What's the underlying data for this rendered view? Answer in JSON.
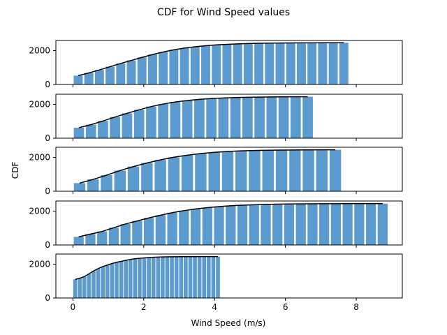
{
  "figure": {
    "title": "CDF for Wind Speed values",
    "xlabel": "Wind Speed (m/s)",
    "ylabel": "CDF"
  },
  "colors": {
    "bar": "#5b9bcf",
    "line": "#000000"
  },
  "chart_data": {
    "type": "bar",
    "shared_x": true,
    "xlim": [
      -0.48,
      9.3
    ],
    "xticks": [
      0,
      2,
      4,
      6,
      8
    ],
    "ylim": [
      0,
      2600
    ],
    "yticks": [
      0,
      2000
    ],
    "grid": false,
    "panels": [
      {
        "bin_width": 0.3,
        "x": [
          0.15,
          0.45,
          0.75,
          1.05,
          1.35,
          1.65,
          1.95,
          2.25,
          2.55,
          2.85,
          3.15,
          3.45,
          3.75,
          4.05,
          4.35,
          4.65,
          4.95,
          5.25,
          5.55,
          5.85,
          6.15,
          6.45,
          6.75,
          7.05,
          7.35,
          7.65
        ],
        "values": [
          520,
          680,
          860,
          1050,
          1240,
          1420,
          1600,
          1770,
          1920,
          2050,
          2150,
          2230,
          2290,
          2340,
          2375,
          2400,
          2420,
          2435,
          2445,
          2452,
          2457,
          2460,
          2462,
          2464,
          2465,
          2465
        ]
      },
      {
        "bin_width": 0.34,
        "x": [
          0.17,
          0.51,
          0.85,
          1.19,
          1.53,
          1.87,
          2.21,
          2.55,
          2.89,
          3.23,
          3.57,
          3.91,
          4.25,
          4.59,
          4.93,
          5.27,
          5.61,
          5.95,
          6.29,
          6.63
        ],
        "values": [
          620,
          800,
          1020,
          1250,
          1470,
          1680,
          1870,
          2020,
          2140,
          2230,
          2295,
          2345,
          2380,
          2405,
          2420,
          2432,
          2440,
          2446,
          2450,
          2452
        ]
      },
      {
        "bin_width": 0.38,
        "x": [
          0.19,
          0.57,
          0.95,
          1.33,
          1.71,
          2.09,
          2.47,
          2.85,
          3.23,
          3.61,
          3.99,
          4.37,
          4.75,
          5.13,
          5.51,
          5.89,
          6.27,
          6.65,
          7.03,
          7.41
        ],
        "values": [
          480,
          700,
          950,
          1220,
          1460,
          1670,
          1850,
          2010,
          2130,
          2230,
          2300,
          2350,
          2390,
          2410,
          2425,
          2435,
          2442,
          2446,
          2449,
          2450
        ]
      },
      {
        "bin_width": 0.33,
        "x": [
          0.165,
          0.495,
          0.825,
          1.155,
          1.485,
          1.815,
          2.145,
          2.475,
          2.805,
          3.135,
          3.465,
          3.795,
          4.125,
          4.455,
          4.785,
          5.115,
          5.445,
          5.775,
          6.105,
          6.435,
          6.765,
          7.095,
          7.425,
          7.755,
          8.085,
          8.415,
          8.745
        ],
        "values": [
          480,
          640,
          800,
          1020,
          1240,
          1420,
          1600,
          1760,
          1910,
          2030,
          2130,
          2210,
          2270,
          2320,
          2355,
          2380,
          2400,
          2415,
          2425,
          2432,
          2437,
          2440,
          2442,
          2444,
          2445,
          2446,
          2446
        ]
      },
      {
        "bin_width": 0.13,
        "x": [
          0.065,
          0.195,
          0.325,
          0.455,
          0.585,
          0.715,
          0.845,
          0.975,
          1.105,
          1.235,
          1.365,
          1.495,
          1.625,
          1.755,
          1.885,
          2.015,
          2.145,
          2.275,
          2.405,
          2.535,
          2.665,
          2.795,
          2.925,
          3.055,
          3.185,
          3.315,
          3.445,
          3.575,
          3.705,
          3.835,
          3.965,
          4.095
        ],
        "values": [
          1100,
          1170,
          1270,
          1430,
          1600,
          1740,
          1860,
          1950,
          2040,
          2110,
          2170,
          2230,
          2280,
          2320,
          2350,
          2375,
          2395,
          2410,
          2420,
          2428,
          2434,
          2438,
          2441,
          2443,
          2445,
          2446,
          2447,
          2448,
          2448,
          2449,
          2449,
          2450
        ]
      }
    ]
  }
}
